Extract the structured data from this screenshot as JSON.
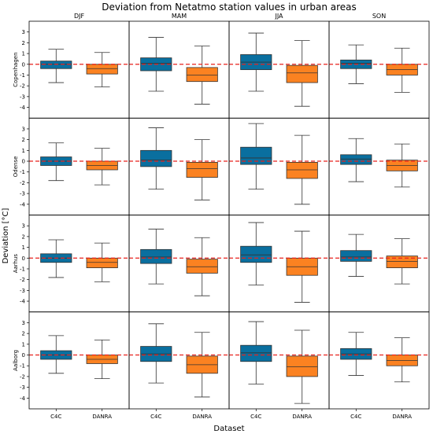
{
  "chart_data": {
    "type": "box",
    "title": "Deviation from Netatmo station values in urban areas",
    "xlabel": "Dataset",
    "ylabel": "Deviation [°C]",
    "columns": [
      "DJF",
      "MAM",
      "JJA",
      "SON"
    ],
    "rows": [
      "Copenhagen",
      "Odense",
      "Aarhus",
      "Aalborg"
    ],
    "categories": [
      "C4C",
      "DANRA"
    ],
    "ylim": [
      -5,
      4
    ],
    "yticks": [
      "3",
      "2",
      "1",
      "0",
      "-1",
      "-2",
      "-3",
      "-4"
    ],
    "reference_line": 0,
    "colors": {
      "C4C": "#0a6f9f",
      "DANRA": "#fb8221",
      "reference": "#e8221c"
    },
    "series": [
      {
        "row": "Copenhagen",
        "column": "DJF",
        "dataset": "C4C",
        "whislo": -1.7,
        "q1": -0.4,
        "median": 0.0,
        "q3": 0.3,
        "whishi": 1.4
      },
      {
        "row": "Copenhagen",
        "column": "DJF",
        "dataset": "DANRA",
        "whislo": -2.1,
        "q1": -0.9,
        "median": -0.4,
        "q3": 0.0,
        "whishi": 1.1
      },
      {
        "row": "Copenhagen",
        "column": "MAM",
        "dataset": "C4C",
        "whislo": -2.5,
        "q1": -0.6,
        "median": 0.1,
        "q3": 0.6,
        "whishi": 2.5
      },
      {
        "row": "Copenhagen",
        "column": "MAM",
        "dataset": "DANRA",
        "whislo": -3.7,
        "q1": -1.6,
        "median": -1.0,
        "q3": -0.3,
        "whishi": 1.7
      },
      {
        "row": "Copenhagen",
        "column": "JJA",
        "dataset": "C4C",
        "whislo": -2.5,
        "q1": -0.5,
        "median": 0.2,
        "q3": 0.9,
        "whishi": 2.9
      },
      {
        "row": "Copenhagen",
        "column": "JJA",
        "dataset": "DANRA",
        "whislo": -3.9,
        "q1": -1.7,
        "median": -0.8,
        "q3": -0.1,
        "whishi": 2.2
      },
      {
        "row": "Copenhagen",
        "column": "SON",
        "dataset": "C4C",
        "whislo": -1.8,
        "q1": -0.4,
        "median": 0.1,
        "q3": 0.4,
        "whishi": 1.8
      },
      {
        "row": "Copenhagen",
        "column": "SON",
        "dataset": "DANRA",
        "whislo": -2.6,
        "q1": -1.0,
        "median": -0.5,
        "q3": 0.0,
        "whishi": 1.5
      },
      {
        "row": "Odense",
        "column": "DJF",
        "dataset": "C4C",
        "whislo": -1.8,
        "q1": -0.4,
        "median": 0.0,
        "q3": 0.4,
        "whishi": 1.7
      },
      {
        "row": "Odense",
        "column": "DJF",
        "dataset": "DANRA",
        "whislo": -2.2,
        "q1": -0.8,
        "median": -0.4,
        "q3": 0.0,
        "whishi": 1.2
      },
      {
        "row": "Odense",
        "column": "MAM",
        "dataset": "C4C",
        "whislo": -2.6,
        "q1": -0.5,
        "median": 0.1,
        "q3": 1.0,
        "whishi": 3.1
      },
      {
        "row": "Odense",
        "column": "MAM",
        "dataset": "DANRA",
        "whislo": -3.6,
        "q1": -1.5,
        "median": -0.7,
        "q3": -0.1,
        "whishi": 2.0
      },
      {
        "row": "Odense",
        "column": "JJA",
        "dataset": "C4C",
        "whislo": -2.6,
        "q1": -0.3,
        "median": 0.3,
        "q3": 1.3,
        "whishi": 3.5
      },
      {
        "row": "Odense",
        "column": "JJA",
        "dataset": "DANRA",
        "whislo": -4.0,
        "q1": -1.6,
        "median": -0.8,
        "q3": -0.1,
        "whishi": 2.4
      },
      {
        "row": "Odense",
        "column": "SON",
        "dataset": "C4C",
        "whislo": -1.9,
        "q1": -0.3,
        "median": 0.2,
        "q3": 0.6,
        "whishi": 2.1
      },
      {
        "row": "Odense",
        "column": "SON",
        "dataset": "DANRA",
        "whislo": -2.4,
        "q1": -0.9,
        "median": -0.4,
        "q3": 0.1,
        "whishi": 1.6
      },
      {
        "row": "Aarhus",
        "column": "DJF",
        "dataset": "C4C",
        "whislo": -1.8,
        "q1": -0.4,
        "median": 0.0,
        "q3": 0.4,
        "whishi": 1.7
      },
      {
        "row": "Aarhus",
        "column": "DJF",
        "dataset": "DANRA",
        "whislo": -2.2,
        "q1": -0.9,
        "median": -0.4,
        "q3": 0.0,
        "whishi": 1.4
      },
      {
        "row": "Aarhus",
        "column": "MAM",
        "dataset": "C4C",
        "whislo": -2.4,
        "q1": -0.5,
        "median": 0.1,
        "q3": 0.8,
        "whishi": 2.7
      },
      {
        "row": "Aarhus",
        "column": "MAM",
        "dataset": "DANRA",
        "whislo": -3.5,
        "q1": -1.4,
        "median": -0.8,
        "q3": -0.1,
        "whishi": 1.9
      },
      {
        "row": "Aarhus",
        "column": "JJA",
        "dataset": "C4C",
        "whislo": -2.5,
        "q1": -0.4,
        "median": 0.3,
        "q3": 1.1,
        "whishi": 3.3
      },
      {
        "row": "Aarhus",
        "column": "JJA",
        "dataset": "DANRA",
        "whislo": -4.1,
        "q1": -1.6,
        "median": -0.8,
        "q3": 0.0,
        "whishi": 2.5
      },
      {
        "row": "Aarhus",
        "column": "SON",
        "dataset": "C4C",
        "whislo": -1.7,
        "q1": -0.3,
        "median": 0.1,
        "q3": 0.7,
        "whishi": 2.2
      },
      {
        "row": "Aarhus",
        "column": "SON",
        "dataset": "DANRA",
        "whislo": -2.4,
        "q1": -0.9,
        "median": -0.3,
        "q3": 0.2,
        "whishi": 1.8
      },
      {
        "row": "Aalborg",
        "column": "DJF",
        "dataset": "C4C",
        "whislo": -1.7,
        "q1": -0.4,
        "median": 0.0,
        "q3": 0.4,
        "whishi": 1.8
      },
      {
        "row": "Aalborg",
        "column": "DJF",
        "dataset": "DANRA",
        "whislo": -2.2,
        "q1": -0.8,
        "median": -0.4,
        "q3": 0.0,
        "whishi": 1.4
      },
      {
        "row": "Aalborg",
        "column": "MAM",
        "dataset": "C4C",
        "whislo": -2.6,
        "q1": -0.6,
        "median": 0.1,
        "q3": 0.8,
        "whishi": 2.9
      },
      {
        "row": "Aalborg",
        "column": "MAM",
        "dataset": "DANRA",
        "whislo": -3.9,
        "q1": -1.7,
        "median": -0.9,
        "q3": -0.1,
        "whishi": 2.1
      },
      {
        "row": "Aalborg",
        "column": "JJA",
        "dataset": "C4C",
        "whislo": -2.7,
        "q1": -0.6,
        "median": 0.2,
        "q3": 0.9,
        "whishi": 3.1
      },
      {
        "row": "Aalborg",
        "column": "JJA",
        "dataset": "DANRA",
        "whislo": -4.5,
        "q1": -2.0,
        "median": -1.1,
        "q3": -0.1,
        "whishi": 2.3
      },
      {
        "row": "Aalborg",
        "column": "SON",
        "dataset": "C4C",
        "whislo": -1.9,
        "q1": -0.4,
        "median": 0.1,
        "q3": 0.6,
        "whishi": 2.1
      },
      {
        "row": "Aalborg",
        "column": "SON",
        "dataset": "DANRA",
        "whislo": -2.5,
        "q1": -1.0,
        "median": -0.5,
        "q3": 0.0,
        "whishi": 1.6
      }
    ]
  }
}
